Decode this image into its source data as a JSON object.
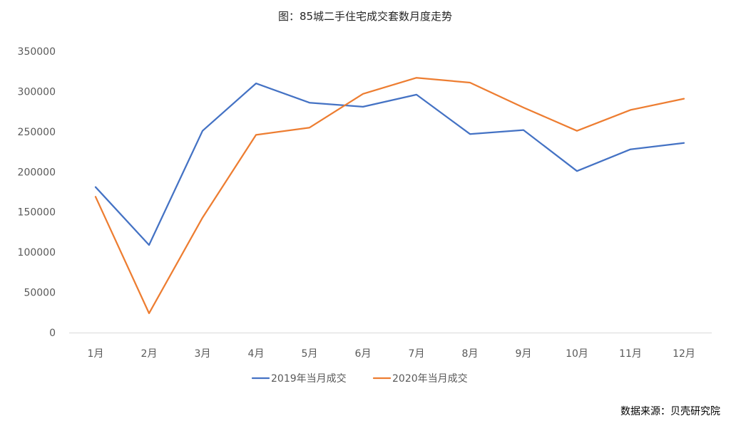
{
  "source": "数据来源：贝壳研究院",
  "chart_data": {
    "type": "line",
    "title": "图：85城二手住宅成交套数月度走势",
    "xlabel": "",
    "ylabel": "",
    "categories": [
      "1月",
      "2月",
      "3月",
      "4月",
      "5月",
      "6月",
      "7月",
      "8月",
      "9月",
      "10月",
      "11月",
      "12月"
    ],
    "ylim": [
      0,
      350000
    ],
    "yticks": [
      "0",
      "50000",
      "100000",
      "150000",
      "200000",
      "250000",
      "300000",
      "350000"
    ],
    "grid": false,
    "legend": "bottom-center",
    "series": [
      {
        "name": "2019年当月成交",
        "color": "#4472C4",
        "values": [
          181000,
          109000,
          251000,
          310000,
          286000,
          281000,
          296000,
          247000,
          252000,
          201000,
          228000,
          236000
        ]
      },
      {
        "name": "2020年当月成交",
        "color": "#ED7D31",
        "values": [
          169000,
          24000,
          143000,
          246000,
          255000,
          297000,
          317000,
          311000,
          280000,
          251000,
          277000,
          291000
        ]
      }
    ]
  }
}
